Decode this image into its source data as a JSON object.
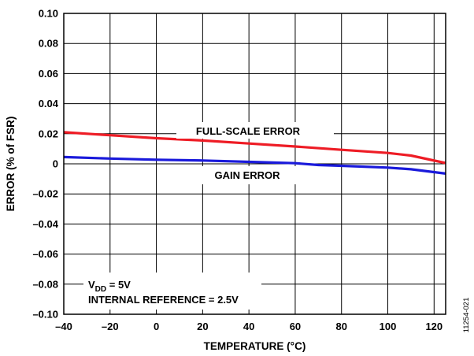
{
  "chart_data": {
    "type": "line",
    "xlabel": "TEMPERATURE (°C)",
    "ylabel": "ERROR (% of FSR)",
    "xlim": [
      -40,
      125
    ],
    "ylim": [
      -0.1,
      0.1
    ],
    "xticks": [
      -40,
      -20,
      0,
      20,
      40,
      60,
      80,
      100,
      120
    ],
    "xtick_labels": [
      "–40",
      "–20",
      "0",
      "20",
      "40",
      "60",
      "80",
      "100",
      "120"
    ],
    "yticks": [
      0.1,
      0.08,
      0.06,
      0.04,
      0.02,
      0,
      -0.02,
      -0.04,
      -0.06,
      -0.08,
      -0.1
    ],
    "ytick_labels": [
      "0.10",
      "0.08",
      "0.06",
      "0.04",
      "0.02",
      "0",
      "–0.02",
      "–0.04",
      "–0.06",
      "–0.08",
      "–0.10"
    ],
    "grid": true,
    "series": [
      {
        "name": "FULL-SCALE ERROR",
        "color": "#ee1c25",
        "x": [
          -40,
          -20,
          0,
          20,
          40,
          60,
          80,
          100,
          110,
          125
        ],
        "y": [
          0.021,
          0.019,
          0.017,
          0.0155,
          0.0135,
          0.0115,
          0.0093,
          0.0072,
          0.0055,
          0.0005
        ]
      },
      {
        "name": "GAIN ERROR",
        "color": "#1a1adb",
        "x": [
          -40,
          -20,
          0,
          20,
          40,
          60,
          70,
          80,
          100,
          110,
          125
        ],
        "y": [
          0.0045,
          0.0035,
          0.0027,
          0.0022,
          0.0013,
          0.0004,
          -0.0008,
          -0.0013,
          -0.0025,
          -0.0036,
          -0.0065
        ]
      }
    ],
    "annotations": {
      "vdd_main": "V",
      "vdd_sub": "DD",
      "vdd_rest": " = 5V",
      "internal_ref": "INTERNAL REFERENCE = 2.5V"
    },
    "figure_id": "11254-021"
  }
}
